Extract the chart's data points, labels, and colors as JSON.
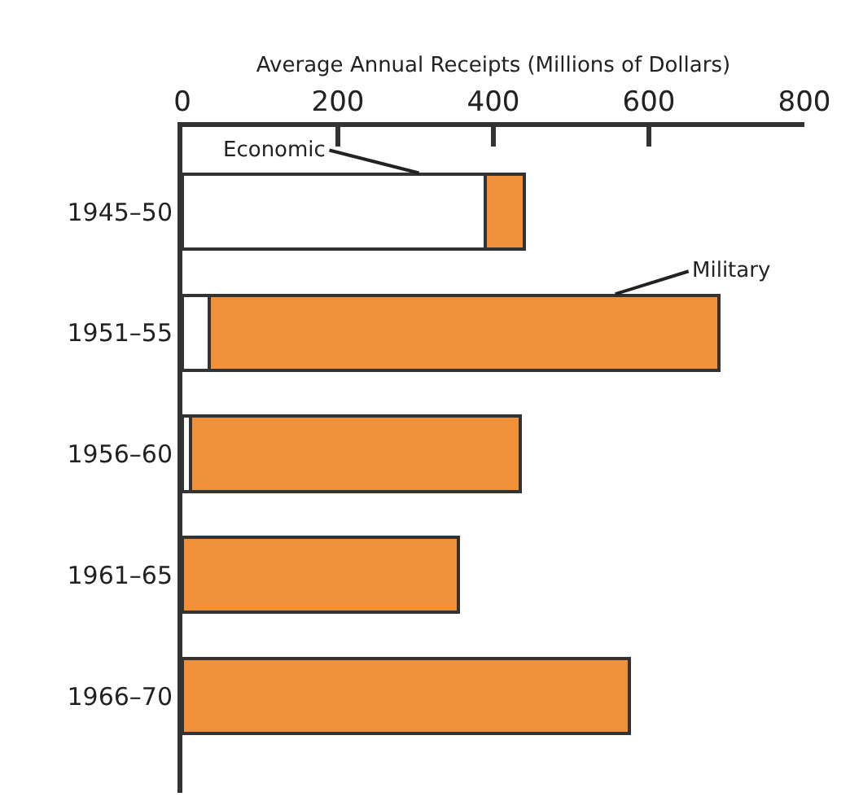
{
  "chart_data": {
    "type": "bar",
    "orientation": "horizontal",
    "stacked": true,
    "xlabel": "Average Annual Receipts (Millions of Dollars)",
    "categories": [
      "1945–50",
      "1951–55",
      "1956–60",
      "1961–65",
      "1966–70"
    ],
    "series": [
      {
        "name": "Economic",
        "color": "#ffffff",
        "values": [
          390,
          35,
          10,
          0,
          0
        ]
      },
      {
        "name": "Military",
        "color": "#f0913a",
        "values": [
          50,
          655,
          425,
          355,
          575
        ]
      }
    ],
    "xlim": [
      0,
      800
    ],
    "xticks": [
      0,
      200,
      400,
      600,
      800
    ],
    "grid": false,
    "legend": false
  }
}
